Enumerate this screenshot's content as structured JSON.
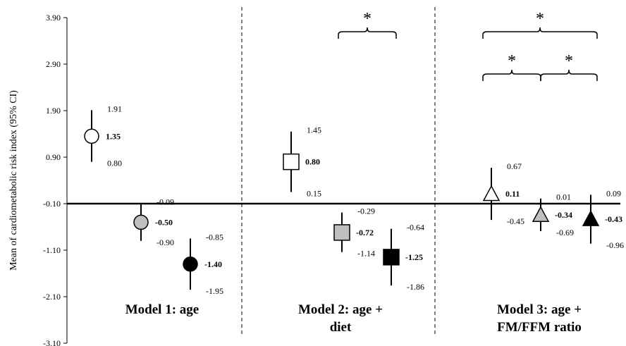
{
  "chart_data": {
    "type": "scatter",
    "ylabel": "Mean of cardiometabolic risk index (95% CI)",
    "ylim": [
      -3.1,
      3.9
    ],
    "yticks": [
      "3.90",
      "2.90",
      "1.90",
      "0.90",
      "-0.10",
      "-1.10",
      "-2.10",
      "-3.10"
    ],
    "reference_line_y": -0.1,
    "groups": [
      {
        "title": "Model 1: age",
        "points": [
          {
            "marker": "circle",
            "fill": "#ffffff",
            "mean": 1.35,
            "mean_label": "1.35",
            "upper": 1.91,
            "upper_label": "1.91",
            "lower": 0.8,
            "lower_label": "0.80"
          },
          {
            "marker": "circle",
            "fill": "#bfbfbf",
            "mean": -0.5,
            "mean_label": "-0.50",
            "upper": -0.09,
            "upper_label": "-0.09",
            "lower": -0.9,
            "lower_label": "-0.90"
          },
          {
            "marker": "circle",
            "fill": "#000000",
            "mean": -1.4,
            "mean_label": "-1.40",
            "upper": -0.85,
            "upper_label": "-0.85",
            "lower": -1.95,
            "lower_label": "-1.95"
          }
        ]
      },
      {
        "title_lines": [
          "Model 2: age +",
          "diet"
        ],
        "points": [
          {
            "marker": "square",
            "fill": "#ffffff",
            "mean": 0.8,
            "mean_label": "0.80",
            "upper": 1.45,
            "upper_label": "1.45",
            "lower": 0.15,
            "lower_label": "0.15"
          },
          {
            "marker": "square",
            "fill": "#bfbfbf",
            "mean": -0.72,
            "mean_label": "-0.72",
            "upper": -0.29,
            "upper_label": "-0.29",
            "lower": -1.14,
            "lower_label": "-1.14"
          },
          {
            "marker": "square",
            "fill": "#000000",
            "mean": -1.25,
            "mean_label": "-1.25",
            "upper": -0.64,
            "upper_label": "-0.64",
            "lower": -1.86,
            "lower_label": "-1.86"
          }
        ]
      },
      {
        "title_lines": [
          "Model 3: age +",
          "FM/FFM ratio"
        ],
        "points": [
          {
            "marker": "triangle",
            "fill": "#ffffff",
            "mean": 0.11,
            "mean_label": "0.11",
            "upper": 0.67,
            "upper_label": "0.67",
            "lower": -0.45,
            "lower_label": "-0.45"
          },
          {
            "marker": "triangle",
            "fill": "#bfbfbf",
            "mean": -0.34,
            "mean_label": "-0.34",
            "upper": 0.01,
            "upper_label": "0.01",
            "lower": -0.69,
            "lower_label": "-0.69"
          },
          {
            "marker": "triangle",
            "fill": "#000000",
            "mean": -0.43,
            "mean_label": "-0.43",
            "upper": 0.09,
            "upper_label": "0.09",
            "lower": -0.96,
            "lower_label": "-0.96"
          }
        ]
      }
    ],
    "significance_markers": [
      "*",
      "*",
      "*",
      "*"
    ]
  }
}
